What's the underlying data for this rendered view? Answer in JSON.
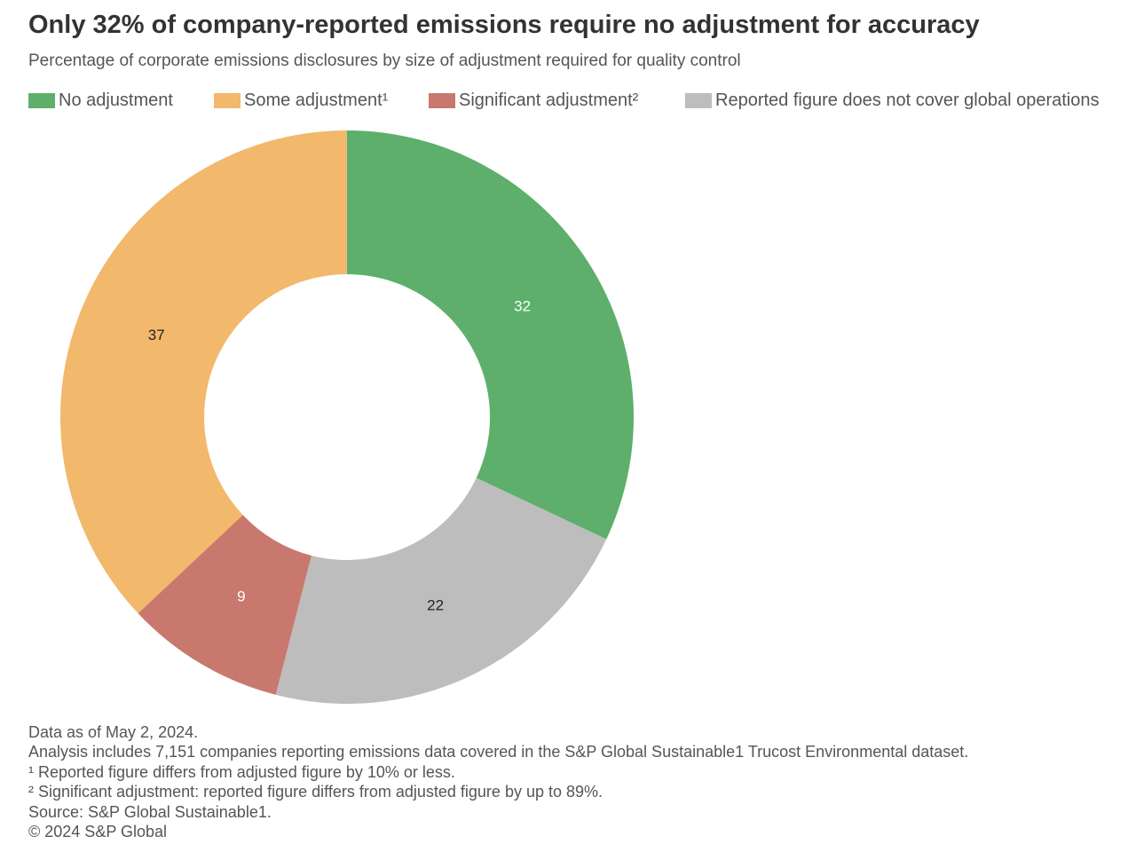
{
  "title": "Only 32% of company-reported emissions require no adjustment for accuracy",
  "subtitle": "Percentage of corporate emissions disclosures by size of adjustment required for quality control",
  "chart_data": {
    "type": "pie",
    "donut": true,
    "title": "Only 32% of company-reported emissions require no adjustment for accuracy",
    "subtitle": "Percentage of corporate emissions disclosures by size of adjustment required for quality control",
    "legend_position": "top",
    "categories": [
      "No adjustment",
      "Reported figure does not cover global operations",
      "Significant adjustment²",
      "Some adjustment¹"
    ],
    "values": [
      32,
      22,
      9,
      37
    ],
    "colors": [
      "#5daf6b",
      "#bdbdbe",
      "#c8786d",
      "#f2b86c"
    ],
    "label_colors": [
      "#ffffff",
      "#222222",
      "#ffffff",
      "#222222"
    ]
  },
  "legend": [
    {
      "label": "No adjustment",
      "color": "#5daf6b"
    },
    {
      "label": "Some adjustment¹",
      "color": "#f2b86c"
    },
    {
      "label": "Significant adjustment²",
      "color": "#c8786d"
    },
    {
      "label": "Reported figure does not cover global operations",
      "color": "#bdbdbe"
    }
  ],
  "footer": {
    "lines": [
      "Data as of May 2, 2024.",
      "Analysis includes 7,151 companies reporting emissions data covered in the S&P Global Sustainable1 Trucost Environmental dataset.",
      "¹ Reported figure differs from adjusted figure by 10% or less.",
      "² Significant adjustment: reported figure differs from adjusted figure by up to 89%.",
      "Source: S&P Global Sustainable1.",
      "© 2024 S&P Global"
    ]
  }
}
